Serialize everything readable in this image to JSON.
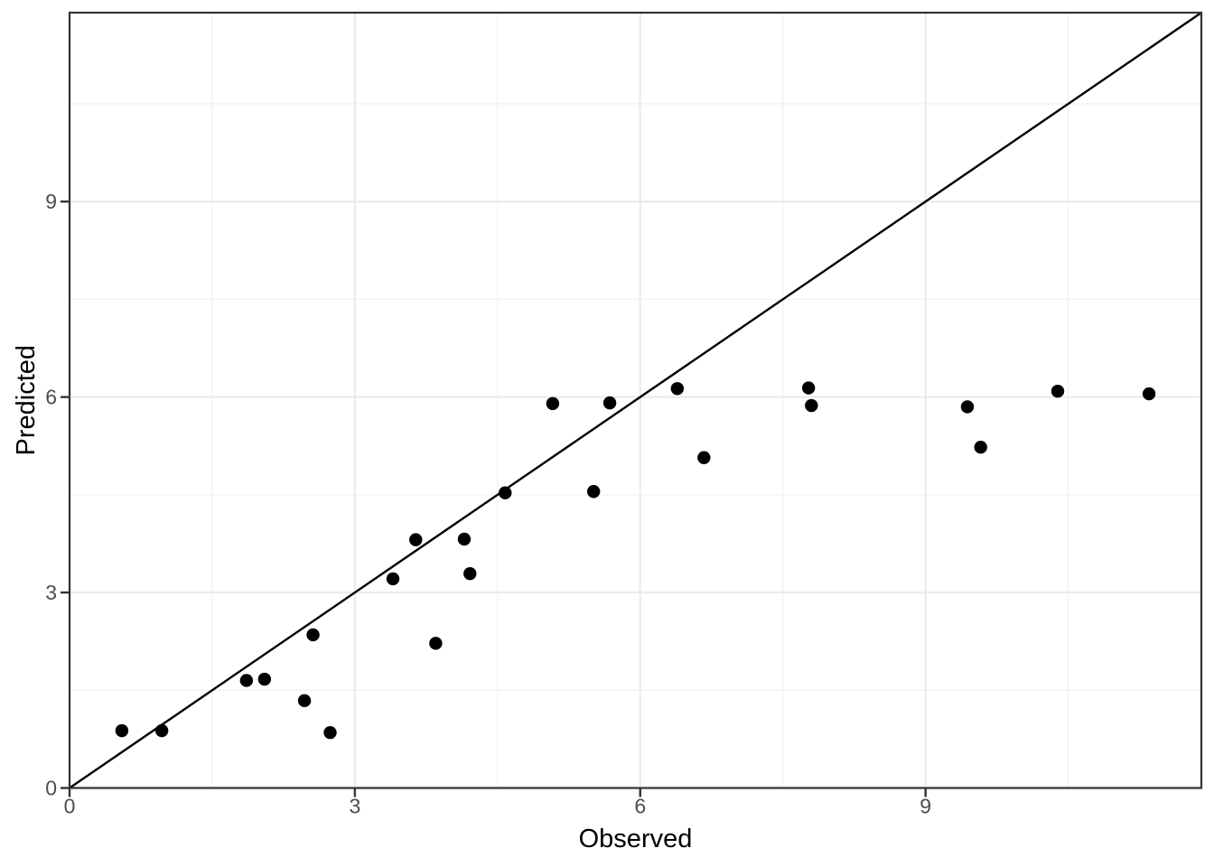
{
  "figure": {
    "kind": "ggplot-scatter",
    "background_color": "#ffffff"
  },
  "chart_data": {
    "type": "scatter",
    "title": "",
    "xlabel": "Observed",
    "ylabel": "Predicted",
    "xlim": [
      0,
      11.9
    ],
    "ylim": [
      0,
      11.9
    ],
    "x_major_ticks": [
      0,
      3,
      6,
      9
    ],
    "y_major_ticks": [
      0,
      3,
      6,
      9
    ],
    "x_minor_ticks": [
      1.5,
      4.5,
      7.5,
      10.5
    ],
    "y_minor_ticks": [
      1.5,
      4.5,
      7.5,
      10.5
    ],
    "x_tick_labels": [
      "0",
      "3",
      "6",
      "9"
    ],
    "y_tick_labels": [
      "0",
      "3",
      "6",
      "9"
    ],
    "grid": true,
    "legend_position": "none",
    "points": [
      [
        0.55,
        0.88
      ],
      [
        0.97,
        0.88
      ],
      [
        1.86,
        1.65
      ],
      [
        2.05,
        1.67
      ],
      [
        2.47,
        1.34
      ],
      [
        2.56,
        2.35
      ],
      [
        2.74,
        0.85
      ],
      [
        3.4,
        3.21
      ],
      [
        3.64,
        3.81
      ],
      [
        3.85,
        2.22
      ],
      [
        4.15,
        3.82
      ],
      [
        4.21,
        3.29
      ],
      [
        4.58,
        4.53
      ],
      [
        5.08,
        5.9
      ],
      [
        5.51,
        4.55
      ],
      [
        5.68,
        5.91
      ],
      [
        6.39,
        6.13
      ],
      [
        6.67,
        5.07
      ],
      [
        7.77,
        6.14
      ],
      [
        7.8,
        5.87
      ],
      [
        9.44,
        5.85
      ],
      [
        9.58,
        5.23
      ],
      [
        10.39,
        6.09
      ],
      [
        11.35,
        6.05
      ]
    ],
    "reference_line": {
      "name": "identity-line",
      "slope": 1,
      "intercept": 0,
      "x_start": 0,
      "y_start": 0,
      "x_end": 11.9,
      "y_end": 11.9,
      "color": "#000000"
    },
    "style": {
      "point_color": "#000000",
      "point_radius": 7.2,
      "line_color": "#000000",
      "line_width": 2.4,
      "grid_major_color": "#ebebeb",
      "grid_major_width": 2.2,
      "grid_minor_color": "#f1f1f1",
      "grid_minor_width": 1.3,
      "panel_border_color": "#333333",
      "panel_border_width": 2.2,
      "tick_color": "#333333",
      "tick_width": 2.4,
      "tick_length": 9,
      "tick_label_color": "#4d4d4d",
      "axis_title_color": "#000000",
      "panel_background": "#ffffff"
    }
  }
}
